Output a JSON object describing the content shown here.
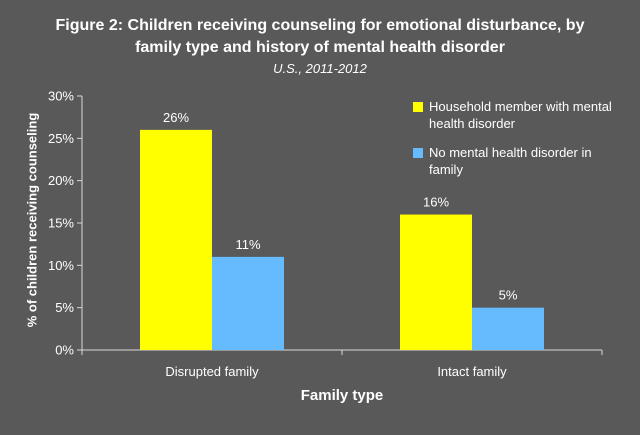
{
  "title_line1": "Figure 2: Children receiving counseling for emotional disturbance, by",
  "title_line2": "family type and history of mental health disorder",
  "subtitle": "U.S., 2011-2012",
  "chart_data": {
    "type": "bar",
    "categories": [
      "Disrupted family",
      "Intact family"
    ],
    "series": [
      {
        "name": "Household member with mental health disorder",
        "values": [
          26,
          16
        ],
        "labels": [
          "26%",
          "16%"
        ],
        "color": "#ffff00"
      },
      {
        "name": "No mental health disorder in family",
        "values": [
          11,
          5
        ],
        "labels": [
          "11%",
          "5%"
        ],
        "color": "#66bbff"
      }
    ],
    "xlabel": "Family type",
    "ylabel": "% of children receiving counseling",
    "ylim": [
      0,
      30
    ],
    "yticks": [
      0,
      5,
      10,
      15,
      20,
      25,
      30
    ],
    "ytick_labels": [
      "0%",
      "5%",
      "10%",
      "15%",
      "20%",
      "25%",
      "30%"
    ],
    "grid": false,
    "legend_position": "top-right"
  },
  "colors": {
    "background": "#595959",
    "text": "#ffffff",
    "axis": "#d9d9d9"
  }
}
